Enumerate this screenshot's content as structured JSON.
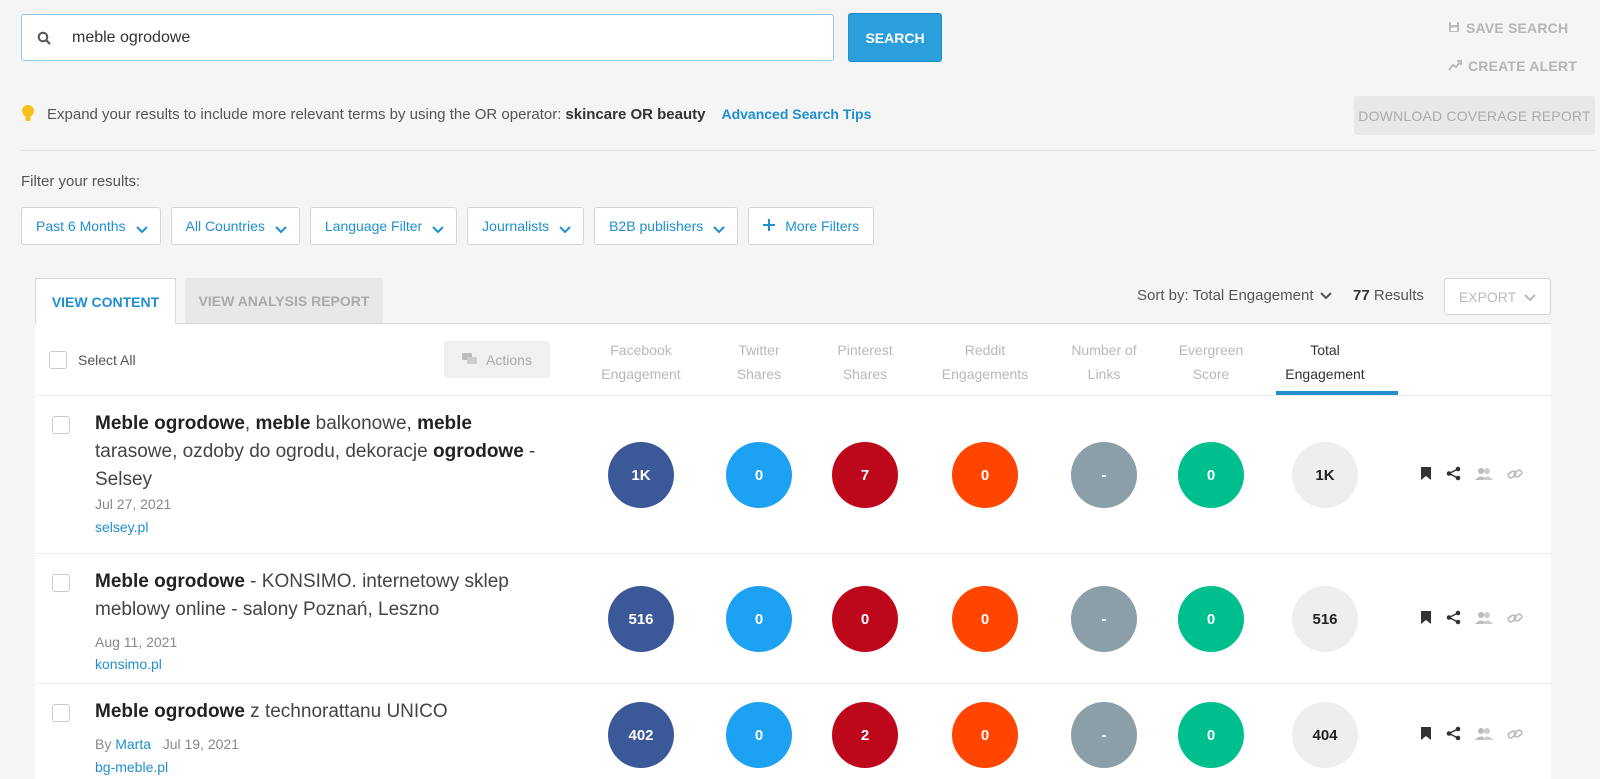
{
  "search": {
    "value": "meble ogrodowe",
    "button": "SEARCH"
  },
  "top_links": {
    "save_search": "SAVE SEARCH",
    "create_alert": "CREATE ALERT"
  },
  "tip": {
    "text": "Expand your results to include more relevant terms by using the OR operator:",
    "example": "skincare OR beauty",
    "link": "Advanced Search Tips"
  },
  "download_button": "DOWNLOAD COVERAGE REPORT",
  "filters": {
    "label": "Filter your results:",
    "items": [
      "Past 6 Months",
      "All Countries",
      "Language Filter",
      "Journalists",
      "B2B publishers"
    ],
    "more": "More Filters"
  },
  "tabs": {
    "content": "VIEW CONTENT",
    "analysis": "VIEW ANALYSIS REPORT"
  },
  "sort": {
    "label": "Sort by: Total Engagement",
    "count": "77",
    "results_word": "Results",
    "export": "EXPORT"
  },
  "table": {
    "select_all": "Select All",
    "actions": "Actions",
    "columns": [
      {
        "line1": "Facebook",
        "line2": "Engagement"
      },
      {
        "line1": "Twitter",
        "line2": "Shares"
      },
      {
        "line1": "Pinterest",
        "line2": "Shares"
      },
      {
        "line1": "Reddit",
        "line2": "Engagements"
      },
      {
        "line1": "Number of",
        "line2": "Links"
      },
      {
        "line1": "Evergreen",
        "line2": "Score"
      },
      {
        "line1": "Total",
        "line2": "Engagement"
      }
    ],
    "rows": [
      {
        "title_parts": [
          [
            "b",
            "Meble ogrodowe"
          ],
          [
            "t",
            ", "
          ],
          [
            "b",
            "meble"
          ],
          [
            "t",
            " balkonowe, "
          ],
          [
            "b",
            "meble"
          ],
          [
            "t",
            " tarasowe, ozdoby do ogrodu, dekoracje "
          ],
          [
            "b",
            "ogrodowe"
          ],
          [
            "t",
            " - Selsey"
          ]
        ],
        "by": "",
        "author": "",
        "date": "Jul 27, 2021",
        "domain": "selsey.pl",
        "values": [
          "1K",
          "0",
          "7",
          "0",
          "-",
          "0",
          "1K"
        ]
      },
      {
        "title_parts": [
          [
            "b",
            "Meble ogrodowe"
          ],
          [
            "t",
            " - KONSIMO. internetowy sklep meblowy online - salony Poznań, Leszno"
          ]
        ],
        "by": "",
        "author": "",
        "date": "Aug 11, 2021",
        "domain": "konsimo.pl",
        "values": [
          "516",
          "0",
          "0",
          "0",
          "-",
          "0",
          "516"
        ]
      },
      {
        "title_parts": [
          [
            "b",
            "Meble ogrodowe"
          ],
          [
            "t",
            " z technorattanu UNICO"
          ]
        ],
        "by": "By",
        "author": "Marta",
        "date": "Jul 19, 2021",
        "domain": "bg-meble.pl",
        "values": [
          "402",
          "0",
          "2",
          "0",
          "-",
          "0",
          "404"
        ]
      }
    ]
  },
  "colors": {
    "facebook": "#3b5998",
    "twitter": "#1da1f2",
    "pinterest": "#bd081c",
    "reddit": "#ff4500",
    "links": "#8c9ea8",
    "evergreen": "#00bf8f",
    "total": "#eeeeee"
  }
}
